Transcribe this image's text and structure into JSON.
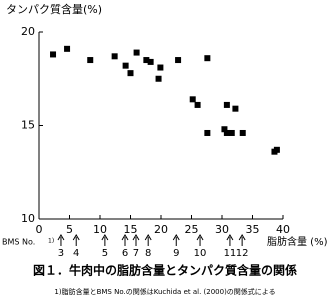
{
  "chart_data": {
    "type": "scatter",
    "title": "図１．牛肉中の脂肪含量とタンパク質含量の関係",
    "y_label": "タンパク質含量(%)",
    "x_label": "脂肪含量 (%)",
    "bms_label": "BMS No.",
    "bms_note": "1)",
    "footnote": "1)脂肪含量とBMS No.の関係はKuchida et al. (2000)の関係式による",
    "xlim": [
      0,
      40
    ],
    "xticks": [
      0,
      5,
      10,
      15,
      20,
      25,
      30,
      35,
      40
    ],
    "ylim": [
      10,
      20
    ],
    "yticks": [
      10,
      15,
      20
    ],
    "color": "#000000",
    "series": [
      {
        "x": [
          2.3,
          4.6,
          8.4,
          12.4,
          14.2,
          15.0,
          16.0,
          17.6,
          18.3,
          19.6,
          19.9,
          22.8,
          27.6,
          25.2,
          26.0,
          30.8,
          27.6,
          30.4,
          30.8,
          31.6,
          32.2,
          33.4,
          38.6,
          39.0
        ],
        "values": [
          18.8,
          19.1,
          18.5,
          18.7,
          18.2,
          17.8,
          18.9,
          18.5,
          18.4,
          17.5,
          18.1,
          18.5,
          18.6,
          16.4,
          16.1,
          16.1,
          14.6,
          14.8,
          14.6,
          14.6,
          15.9,
          14.6,
          13.6,
          13.7
        ]
      }
    ],
    "bms_numbers": [
      "3",
      "4",
      "5",
      "6",
      "7",
      "8",
      "9",
      "10",
      "11",
      "12"
    ],
    "bms_fat": [
      3.6,
      6.1,
      10.8,
      14.1,
      15.9,
      17.9,
      22.5,
      26.4,
      31.3,
      33.3
    ]
  }
}
